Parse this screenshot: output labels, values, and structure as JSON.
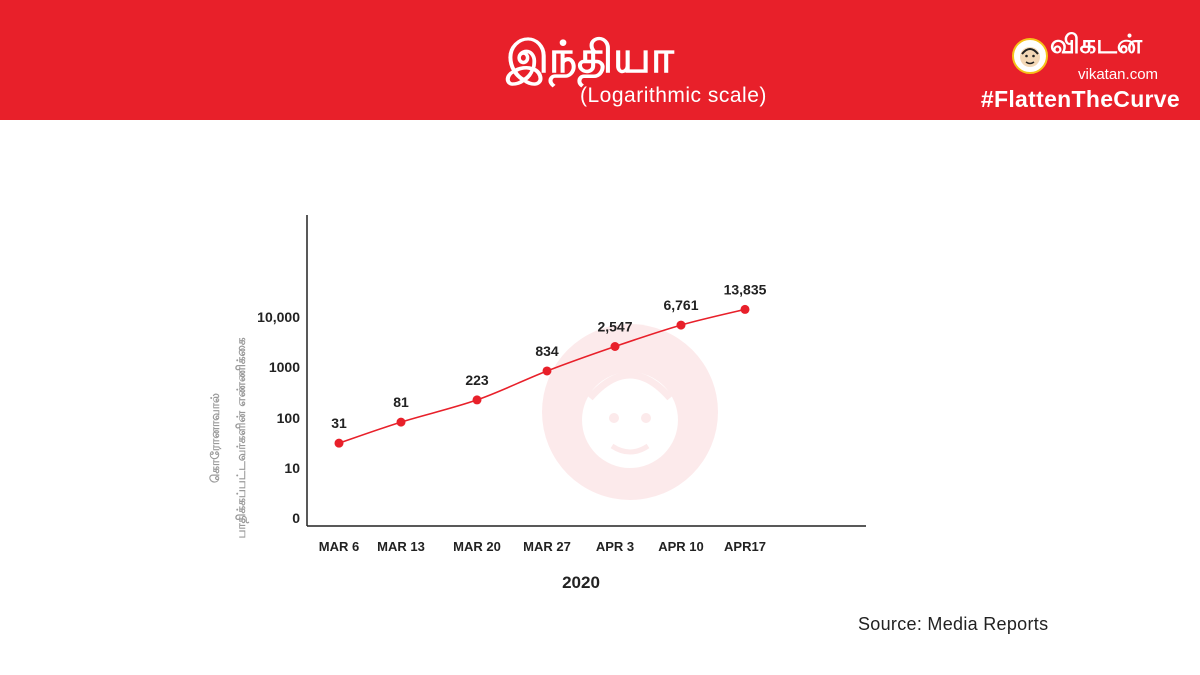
{
  "header": {
    "title": "இந்தியா",
    "subtitle": "(Logarithmic scale)",
    "brand": "விகடன்",
    "brand_url": "vikatan.com",
    "hashtag": "#FlattenTheCurve",
    "banner_color": "#e8202a"
  },
  "footer": {
    "source": "Source: Media Reports"
  },
  "chart_data": {
    "type": "line",
    "scale": "log",
    "categories": [
      "MAR 6",
      "MAR 13",
      "MAR 20",
      "MAR 27",
      "APR 3",
      "APR 10",
      "APR17"
    ],
    "values": [
      31,
      81,
      223,
      834,
      2547,
      6761,
      13835
    ],
    "data_labels": [
      "31",
      "81",
      "223",
      "834",
      "2,547",
      "6,761",
      "13,835"
    ],
    "y_tick_labels": [
      "0",
      "10",
      "100",
      "1000",
      "10,000"
    ],
    "xlabel": "2020",
    "ylabel_lines": [
      "கொரோனாவால்",
      "பாதிக்கப்பட்டவர்களின் எண்ணிக்கை"
    ],
    "line_color": "#e8202a",
    "grid": false,
    "legend": "none"
  }
}
